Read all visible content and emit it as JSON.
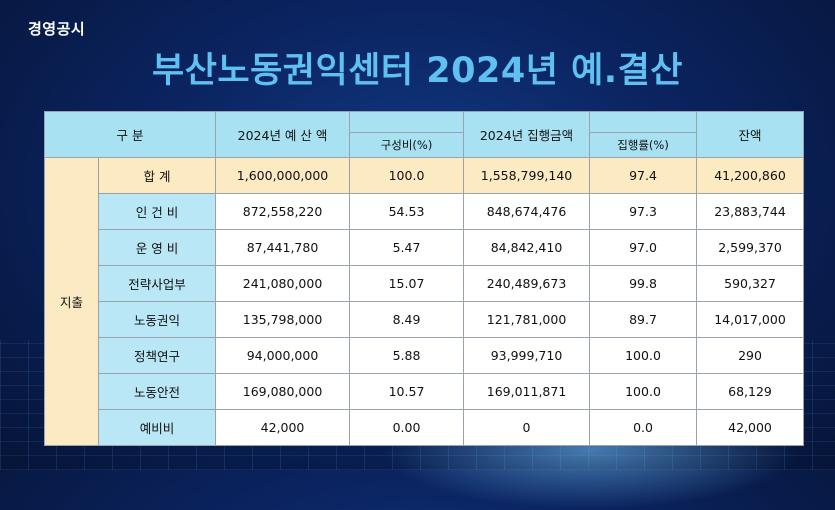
{
  "kicker": "경영공시",
  "title": "부산노동권익센터 2024년 예.결산",
  "headers": {
    "category": "구 분",
    "budget": "2024년 예 산 액",
    "ratio": "구성비(%)",
    "executed": "2024년 집행금액",
    "exec_rate": "집행률(%)",
    "balance": "잔액"
  },
  "group_label": "지출",
  "rows": [
    {
      "name": "합 계",
      "budget": "1,600,000,000",
      "ratio": "100.0",
      "executed": "1,558,799,140",
      "rate": "97.4",
      "balance": "41,200,860"
    },
    {
      "name": "인 건 비",
      "budget": "872,558,220",
      "ratio": "54.53",
      "executed": "848,674,476",
      "rate": "97.3",
      "balance": "23,883,744"
    },
    {
      "name": "운 영 비",
      "budget": "87,441,780",
      "ratio": "5.47",
      "executed": "84,842,410",
      "rate": "97.0",
      "balance": "2,599,370"
    },
    {
      "name": "전략사업부",
      "budget": "241,080,000",
      "ratio": "15.07",
      "executed": "240,489,673",
      "rate": "99.8",
      "balance": "590,327"
    },
    {
      "name": "노동권익",
      "budget": "135,798,000",
      "ratio": "8.49",
      "executed": "121,781,000",
      "rate": "89.7",
      "balance": "14,017,000"
    },
    {
      "name": "정책연구",
      "budget": "94,000,000",
      "ratio": "5.88",
      "executed": "93,999,710",
      "rate": "100.0",
      "balance": "290"
    },
    {
      "name": "노동안전",
      "budget": "169,080,000",
      "ratio": "10.57",
      "executed": "169,011,871",
      "rate": "100.0",
      "balance": "68,129"
    },
    {
      "name": "예비비",
      "budget": "42,000",
      "ratio": "0.00",
      "executed": "0",
      "rate": "0.0",
      "balance": "42,000"
    }
  ]
}
